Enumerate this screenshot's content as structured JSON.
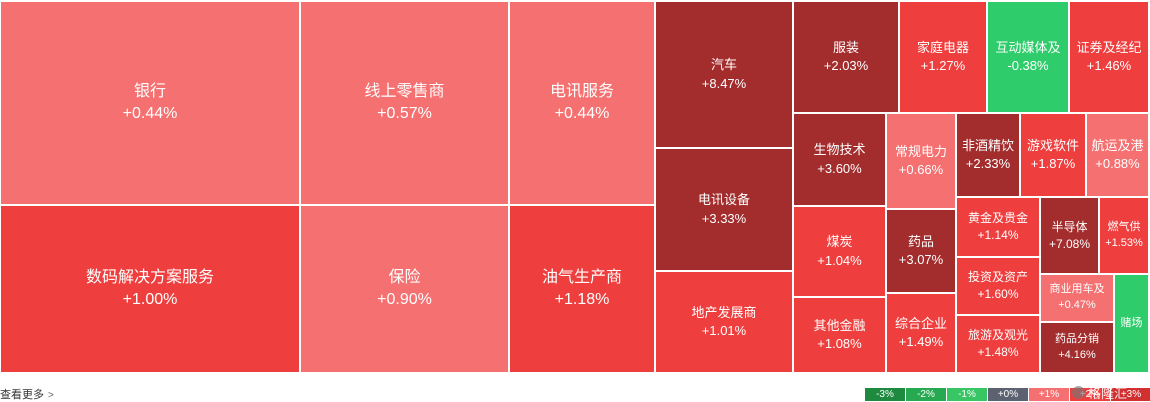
{
  "chart_data": {
    "type": "treemap",
    "items": [
      {
        "name": "银行",
        "change": "+0.44%",
        "value": 0.44
      },
      {
        "name": "线上零售商",
        "change": "+0.57%",
        "value": 0.57
      },
      {
        "name": "电讯服务",
        "change": "+0.44%",
        "value": 0.44
      },
      {
        "name": "数码解决方案服务",
        "change": "+1.00%",
        "value": 1.0
      },
      {
        "name": "保险",
        "change": "+0.90%",
        "value": 0.9
      },
      {
        "name": "油气生产商",
        "change": "+1.18%",
        "value": 1.18
      },
      {
        "name": "汽车",
        "change": "+8.47%",
        "value": 8.47
      },
      {
        "name": "电讯设备",
        "change": "+3.33%",
        "value": 3.33
      },
      {
        "name": "地产发展商",
        "change": "+1.01%",
        "value": 1.01
      },
      {
        "name": "服装",
        "change": "+2.03%",
        "value": 2.03
      },
      {
        "name": "家庭电器",
        "change": "+1.27%",
        "value": 1.27
      },
      {
        "name": "互动媒体及",
        "change": "-0.38%",
        "value": -0.38
      },
      {
        "name": "证券及经纪",
        "change": "+1.46%",
        "value": 1.46
      },
      {
        "name": "生物技术",
        "change": "+3.60%",
        "value": 3.6
      },
      {
        "name": "常规电力",
        "change": "+0.66%",
        "value": 0.66
      },
      {
        "name": "非酒精饮",
        "change": "+2.33%",
        "value": 2.33
      },
      {
        "name": "游戏软件",
        "change": "+1.87%",
        "value": 1.87
      },
      {
        "name": "航运及港",
        "change": "+0.88%",
        "value": 0.88
      },
      {
        "name": "煤炭",
        "change": "+1.04%",
        "value": 1.04
      },
      {
        "name": "药品",
        "change": "+3.07%",
        "value": 3.07
      },
      {
        "name": "黄金及贵金",
        "change": "+1.14%",
        "value": 1.14
      },
      {
        "name": "半导体",
        "change": "+7.08%",
        "value": 7.08
      },
      {
        "name": "燃气供",
        "change": "+1.53%",
        "value": 1.53
      },
      {
        "name": "投资及资产",
        "change": "+1.60%",
        "value": 1.6
      },
      {
        "name": "商业用车及",
        "change": "+0.47%",
        "value": 0.47
      },
      {
        "name": "其他金融",
        "change": "+1.08%",
        "value": 1.08
      },
      {
        "name": "综合企业",
        "change": "+1.49%",
        "value": 1.49
      },
      {
        "name": "旅游及观光",
        "change": "+1.48%",
        "value": 1.48
      },
      {
        "name": "药品分销",
        "change": "+4.16%",
        "value": 4.16
      },
      {
        "name": "赌场",
        "change": "",
        "value": null
      }
    ],
    "legend": [
      "-3%",
      "-2%",
      "-1%",
      "+0%",
      "+1%",
      "+2%",
      "+3%"
    ]
  },
  "colors": {
    "light_red": "#f57070",
    "red": "#ef3e3e",
    "dark_red": "#a32c2c",
    "green": "#2fcc6b",
    "legend": [
      "#1d8a3f",
      "#26a950",
      "#38c564",
      "#5d6270",
      "#f57070",
      "#ef3e3e",
      "#d13030"
    ]
  },
  "footer": {
    "more_label": "查看更多",
    "watermark": "格隆汇"
  }
}
